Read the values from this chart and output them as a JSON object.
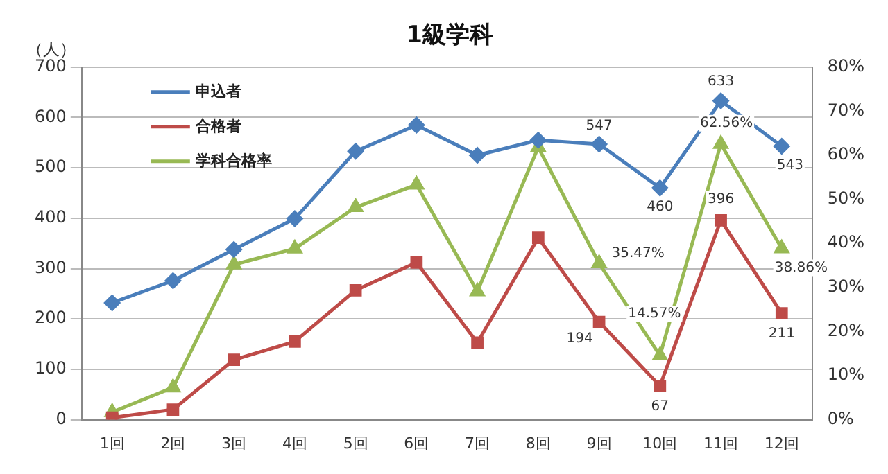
{
  "chart_data": {
    "type": "line",
    "title": "1級学科",
    "ylabel": "（人）",
    "categories": [
      "1回",
      "2回",
      "3回",
      "4回",
      "5回",
      "6回",
      "7回",
      "8回",
      "9回",
      "10回",
      "11回",
      "12回"
    ],
    "series": [
      {
        "name": "申込者",
        "color": "#4a7ebb",
        "marker": "diamond",
        "values": [
          232,
          276,
          338,
          399,
          533,
          585,
          525,
          555,
          547,
          460,
          633,
          543
        ],
        "value_labels": [
          null,
          null,
          null,
          null,
          null,
          null,
          null,
          null,
          "547",
          "460",
          "633",
          "543"
        ]
      },
      {
        "name": "合格者",
        "color": "#be4b48",
        "marker": "square",
        "values": [
          4,
          20,
          119,
          155,
          257,
          312,
          153,
          361,
          194,
          67,
          396,
          211
        ],
        "value_labels": [
          null,
          null,
          null,
          null,
          null,
          null,
          null,
          null,
          "194",
          "67",
          "396",
          "211"
        ]
      },
      {
        "name": "学科合格率",
        "color": "#98b954",
        "marker": "triangle",
        "axis": "y2",
        "values": [
          1.7,
          7.3,
          35.2,
          38.8,
          48.2,
          53.3,
          29.1,
          61.8,
          35.47,
          14.57,
          62.56,
          38.86
        ],
        "value_labels": [
          null,
          null,
          null,
          null,
          null,
          null,
          null,
          null,
          "35.47%",
          "14.57%",
          "62.56%",
          "38.86%"
        ]
      }
    ],
    "ylim": [
      0,
      700
    ],
    "yticks": [
      0,
      100,
      200,
      300,
      400,
      500,
      600,
      700
    ],
    "y2lim": [
      0,
      80
    ],
    "y2ticks": [
      {
        "value": 0,
        "label": "0%"
      },
      {
        "value": 10,
        "label": "10%"
      },
      {
        "value": 20,
        "label": "20%"
      },
      {
        "value": 30,
        "label": "30%"
      },
      {
        "value": 40,
        "label": "40%"
      },
      {
        "value": 50,
        "label": "50%"
      },
      {
        "value": 60,
        "label": "60%"
      },
      {
        "value": 70,
        "label": "70%"
      },
      {
        "value": 80,
        "label": "80%"
      }
    ],
    "grid": "y",
    "legend": "top left",
    "line_style": "solid"
  }
}
